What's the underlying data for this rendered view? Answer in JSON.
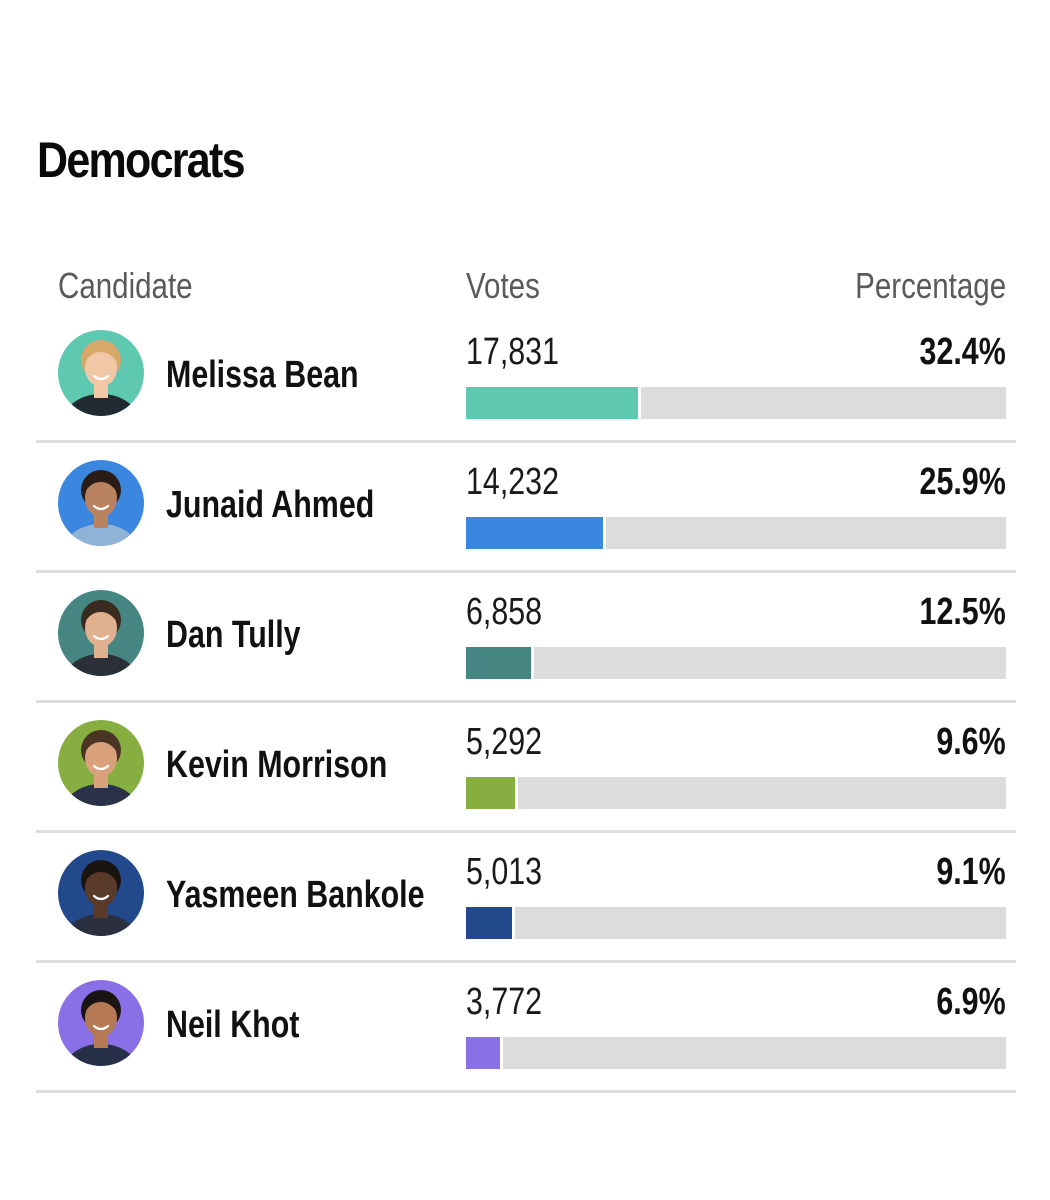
{
  "chart_data": {
    "type": "bar",
    "title": "Democrats",
    "columns": {
      "candidate": "Candidate",
      "votes": "Votes",
      "percentage": "Percentage"
    },
    "xlim": [
      0,
      100
    ],
    "rows": [
      {
        "name": "Melissa Bean",
        "votes": "17,831",
        "percent": 32.4,
        "percent_label": "32.4%",
        "color": "#5ec8b0"
      },
      {
        "name": "Junaid Ahmed",
        "votes": "14,232",
        "percent": 25.9,
        "percent_label": "25.9%",
        "color": "#3b86de"
      },
      {
        "name": "Dan Tully",
        "votes": "6,858",
        "percent": 12.5,
        "percent_label": "12.5%",
        "color": "#458582"
      },
      {
        "name": "Kevin Morrison",
        "votes": "5,292",
        "percent": 9.6,
        "percent_label": "9.6%",
        "color": "#86ae40"
      },
      {
        "name": "Yasmeen Bankole",
        "votes": "5,013",
        "percent": 9.1,
        "percent_label": "9.1%",
        "color": "#22498c"
      },
      {
        "name": "Neil Khot",
        "votes": "3,772",
        "percent": 6.9,
        "percent_label": "6.9%",
        "color": "#8a70e6"
      }
    ]
  },
  "avatars": [
    {
      "icon": "candidate-photo-icon",
      "skin": "#f1c8a7",
      "hair": "#d7a86a",
      "shirt": "#1f2a33"
    },
    {
      "icon": "candidate-photo-icon",
      "skin": "#b98260",
      "hair": "#2a1d16",
      "shirt": "#8fb3d6"
    },
    {
      "icon": "candidate-photo-icon",
      "skin": "#e0b08f",
      "hair": "#3a2a20",
      "shirt": "#2b3038"
    },
    {
      "icon": "candidate-photo-icon",
      "skin": "#d9a17c",
      "hair": "#4a3524",
      "shirt": "#2a3148"
    },
    {
      "icon": "candidate-photo-icon",
      "skin": "#5a3a28",
      "hair": "#1a1410",
      "shirt": "#2a3040"
    },
    {
      "icon": "candidate-photo-icon",
      "skin": "#b57a55",
      "hair": "#1a1512",
      "shirt": "#263048"
    }
  ]
}
